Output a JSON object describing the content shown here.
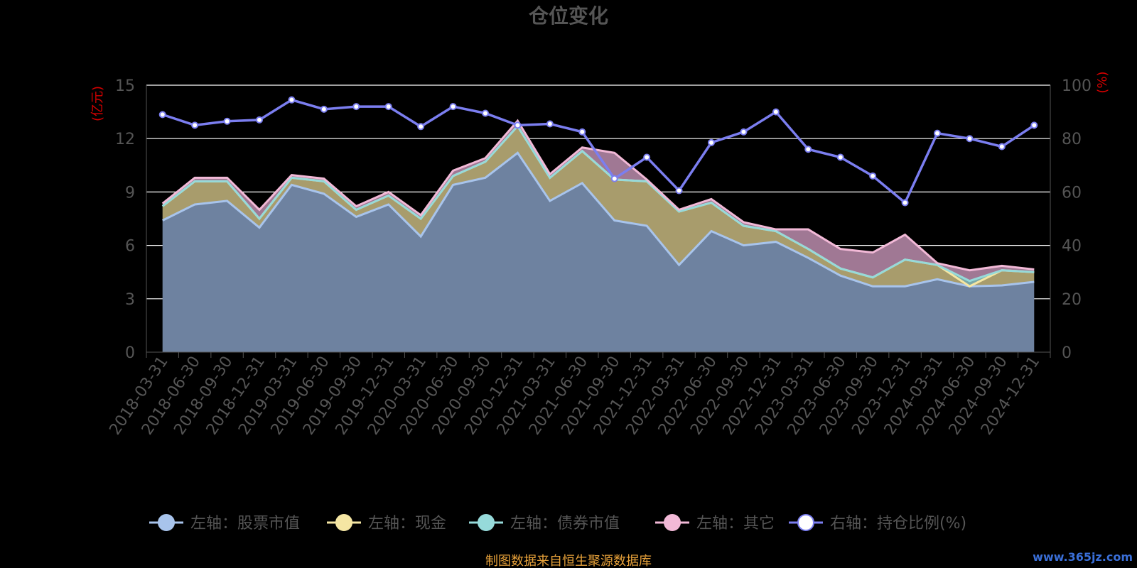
{
  "chart_data": {
    "type": "area",
    "title": "仓位变化",
    "left_axis_unit": "(亿元)",
    "right_axis_unit": "(%)",
    "left_ylim": [
      0,
      15
    ],
    "left_ticks": [
      0,
      3,
      6,
      9,
      12,
      15
    ],
    "right_ylim": [
      0,
      100
    ],
    "right_ticks": [
      0,
      20,
      40,
      60,
      80,
      100
    ],
    "grid": true,
    "legend_position": "bottom",
    "x": [
      "2018-03-31",
      "2018-06-30",
      "2018-09-30",
      "2018-12-31",
      "2019-03-31",
      "2019-06-30",
      "2019-09-30",
      "2019-12-31",
      "2020-03-31",
      "2020-06-30",
      "2020-09-30",
      "2020-12-31",
      "2021-03-31",
      "2021-06-30",
      "2021-09-30",
      "2021-12-31",
      "2022-03-31",
      "2022-06-30",
      "2022-09-30",
      "2022-12-31",
      "2023-03-31",
      "2023-06-30",
      "2023-09-30",
      "2023-12-31",
      "2024-03-31",
      "2024-06-30",
      "2024-09-30",
      "2024-12-31"
    ],
    "stacked_series": [
      {
        "name": "左轴：股票市值",
        "color": "#a8c4ec",
        "values": [
          7.4,
          8.3,
          8.5,
          7.0,
          9.4,
          8.9,
          7.6,
          8.3,
          6.5,
          9.4,
          9.8,
          11.2,
          8.5,
          9.5,
          7.4,
          7.1,
          4.9,
          6.8,
          6.0,
          6.2,
          5.3,
          4.3,
          3.7,
          3.7,
          4.1,
          3.7,
          3.75,
          3.95
        ]
      },
      {
        "name": "左轴：现金",
        "color": "#f5e6a3",
        "values": [
          0.8,
          1.3,
          1.1,
          0.5,
          0.4,
          0.7,
          0.4,
          0.5,
          1.0,
          0.5,
          0.9,
          1.5,
          1.3,
          1.8,
          2.3,
          2.5,
          3.0,
          1.6,
          1.1,
          0.6,
          0.5,
          0.4,
          0.5,
          1.5,
          0.8,
          0.0,
          0.85,
          0.55
        ]
      },
      {
        "name": "左轴：债券市值",
        "color": "#96dada",
        "values": [
          0,
          0,
          0,
          0,
          0,
          0,
          0,
          0,
          0,
          0,
          0,
          0,
          0,
          0,
          0,
          0,
          0,
          0,
          0,
          0,
          0,
          0,
          0,
          0,
          0,
          0.3,
          0,
          0
        ]
      },
      {
        "name": "左轴：其它",
        "color": "#f2b9d7",
        "values": [
          0.15,
          0.2,
          0.2,
          0.5,
          0.15,
          0.15,
          0.2,
          0.2,
          0.2,
          0.3,
          0.2,
          0.3,
          0.2,
          0.2,
          1.5,
          0.1,
          0.1,
          0.2,
          0.2,
          0.1,
          1.1,
          1.1,
          1.4,
          1.4,
          0.1,
          0.6,
          0.25,
          0.15
        ]
      }
    ],
    "line_series": {
      "name": "右轴：持仓比例(%)",
      "color": "#7b7ef0",
      "values": [
        89,
        85,
        86.5,
        87,
        94.5,
        91,
        92,
        92,
        84.5,
        92,
        89.5,
        85,
        85.5,
        82.5,
        65,
        73,
        60.5,
        78.5,
        82.5,
        90,
        76,
        73,
        66,
        56,
        82,
        80,
        77,
        85
      ]
    },
    "footer": "制图数据来自恒生聚源数据库",
    "watermark": "www.365jz.com"
  }
}
